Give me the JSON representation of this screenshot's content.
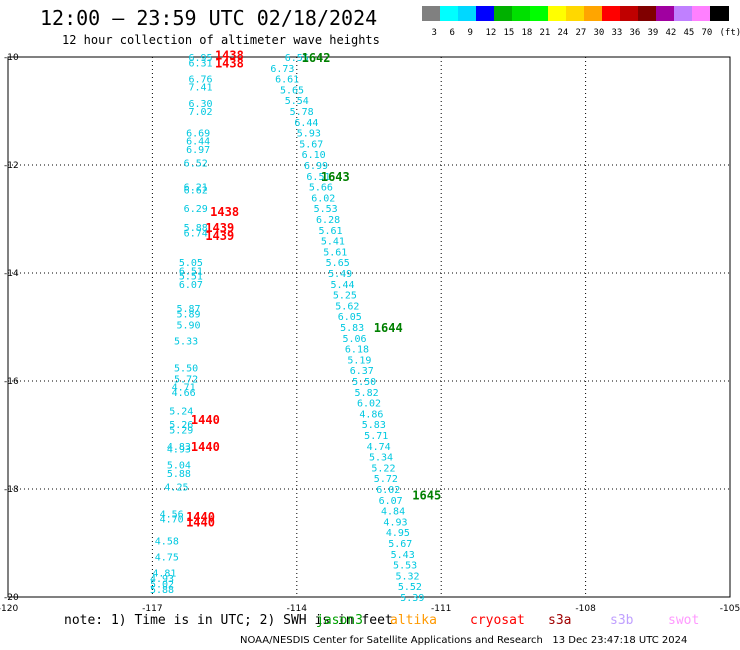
{
  "header": {
    "title": "12:00 – 23:59 UTC 02/18/2024",
    "subtitle": "12 hour collection of altimeter wave heights"
  },
  "legend": {
    "colors": [
      "#808080",
      "#00ffff",
      "#00d8ff",
      "#0000ff",
      "#00b000",
      "#00e000",
      "#00ff00",
      "#ffff00",
      "#ffd800",
      "#ffa500",
      "#ff0000",
      "#c00000",
      "#800000",
      "#a000a0",
      "#c080ff",
      "#ff80ff",
      "#000000"
    ],
    "ticks": [
      "3",
      "6",
      "9",
      "12",
      "15",
      "18",
      "21",
      "24",
      "27",
      "30",
      "33",
      "36",
      "39",
      "42",
      "45",
      "70",
      "(ft)"
    ]
  },
  "axes": {
    "x_ticks": [
      "-120",
      "-117",
      "-114",
      "-111",
      "-108",
      "-105"
    ],
    "y_ticks": [
      "-10",
      "-12",
      "-14",
      "-16",
      "-18",
      "-20"
    ]
  },
  "footer": {
    "note": "note: 1) Time is in UTC; 2) SWH is in feet",
    "satellites": [
      {
        "name": "jason3",
        "color": "#00a000"
      },
      {
        "name": "altika",
        "color": "#ff9900"
      },
      {
        "name": "cryosat",
        "color": "#ff0000"
      },
      {
        "name": "s3a",
        "color": "#a00000"
      },
      {
        "name": "s3b",
        "color": "#c0a0ff"
      },
      {
        "name": "swot",
        "color": "#ff99ff"
      }
    ],
    "credit": "NOAA/NESDIS Center for Satellite Applications and Research   13 Dec 23:47:18 UTC 2024"
  },
  "chart_data": {
    "type": "scatter",
    "x_range": [
      -120,
      -105
    ],
    "y_range": [
      -20,
      -10
    ],
    "value_color": "#00c8e0",
    "passes": [
      {
        "satellite": "jason3",
        "points": [
          {
            "lon": -114.0,
            "lat": -10.0,
            "v": "6.55"
          },
          {
            "lon": -114.3,
            "lat": -10.2,
            "v": "6.73"
          },
          {
            "lon": -114.2,
            "lat": -10.4,
            "v": "6.61"
          },
          {
            "lon": -114.1,
            "lat": -10.6,
            "v": "5.65"
          },
          {
            "lon": -114.0,
            "lat": -10.8,
            "v": "5.54"
          },
          {
            "lon": -113.9,
            "lat": -11.0,
            "v": "5.78"
          },
          {
            "lon": -113.8,
            "lat": -11.2,
            "v": "6.44"
          },
          {
            "lon": -113.75,
            "lat": -11.4,
            "v": "5.93"
          },
          {
            "lon": -113.7,
            "lat": -11.6,
            "v": "5.67"
          },
          {
            "lon": -113.65,
            "lat": -11.8,
            "v": "6.10"
          },
          {
            "lon": -113.6,
            "lat": -12.0,
            "v": "6.99"
          },
          {
            "lon": -113.55,
            "lat": -12.2,
            "v": "6.51"
          },
          {
            "lon": -113.5,
            "lat": -12.4,
            "v": "5.66"
          },
          {
            "lon": -113.45,
            "lat": -12.6,
            "v": "6.02"
          },
          {
            "lon": -113.4,
            "lat": -12.8,
            "v": "5.53"
          },
          {
            "lon": -113.35,
            "lat": -13.0,
            "v": "6.28"
          },
          {
            "lon": -113.3,
            "lat": -13.2,
            "v": "5.61"
          },
          {
            "lon": -113.25,
            "lat": -13.4,
            "v": "5.41"
          },
          {
            "lon": -113.2,
            "lat": -13.6,
            "v": "5.61"
          },
          {
            "lon": -113.15,
            "lat": -13.8,
            "v": "5.65"
          },
          {
            "lon": -113.1,
            "lat": -14.0,
            "v": "5.49"
          },
          {
            "lon": -113.05,
            "lat": -14.2,
            "v": "5.44"
          },
          {
            "lon": -113.0,
            "lat": -14.4,
            "v": "5.25"
          },
          {
            "lon": -112.95,
            "lat": -14.6,
            "v": "5.62"
          },
          {
            "lon": -112.9,
            "lat": -14.8,
            "v": "6.05"
          },
          {
            "lon": -112.85,
            "lat": -15.0,
            "v": "5.83"
          },
          {
            "lon": -112.8,
            "lat": -15.2,
            "v": "5.06"
          },
          {
            "lon": -112.75,
            "lat": -15.4,
            "v": "6.18"
          },
          {
            "lon": -112.7,
            "lat": -15.6,
            "v": "5.19"
          },
          {
            "lon": -112.65,
            "lat": -15.8,
            "v": "6.37"
          },
          {
            "lon": -112.6,
            "lat": -16.0,
            "v": "5.50"
          },
          {
            "lon": -112.55,
            "lat": -16.2,
            "v": "5.82"
          },
          {
            "lon": -112.5,
            "lat": -16.4,
            "v": "6.02"
          },
          {
            "lon": -112.45,
            "lat": -16.6,
            "v": "4.86"
          },
          {
            "lon": -112.4,
            "lat": -16.8,
            "v": "5.83"
          },
          {
            "lon": -112.35,
            "lat": -17.0,
            "v": "5.71"
          },
          {
            "lon": -112.3,
            "lat": -17.2,
            "v": "4.74"
          },
          {
            "lon": -112.25,
            "lat": -17.4,
            "v": "5.34"
          },
          {
            "lon": -112.2,
            "lat": -17.6,
            "v": "5.22"
          },
          {
            "lon": -112.15,
            "lat": -17.8,
            "v": "5.72"
          },
          {
            "lon": -112.1,
            "lat": -18.0,
            "v": "6.02"
          },
          {
            "lon": -112.05,
            "lat": -18.2,
            "v": "6.07"
          },
          {
            "lon": -112.0,
            "lat": -18.4,
            "v": "4.84"
          },
          {
            "lon": -111.95,
            "lat": -18.6,
            "v": "4.93"
          },
          {
            "lon": -111.9,
            "lat": -18.8,
            "v": "4.95"
          },
          {
            "lon": -111.85,
            "lat": -19.0,
            "v": "5.67"
          },
          {
            "lon": -111.8,
            "lat": -19.2,
            "v": "5.43"
          },
          {
            "lon": -111.75,
            "lat": -19.4,
            "v": "5.53"
          },
          {
            "lon": -111.7,
            "lat": -19.6,
            "v": "5.32"
          },
          {
            "lon": -111.65,
            "lat": -19.8,
            "v": "5.52"
          },
          {
            "lon": -111.6,
            "lat": -20.0,
            "v": "5.39"
          }
        ],
        "times": [
          {
            "lon": -113.6,
            "lat": -10.0,
            "t": "1642",
            "color": "#008000"
          },
          {
            "lon": -113.2,
            "lat": -12.2,
            "t": "1643",
            "color": "#008000"
          },
          {
            "lon": -112.1,
            "lat": -15.0,
            "t": "1644",
            "color": "#008000"
          },
          {
            "lon": -111.3,
            "lat": -18.1,
            "t": "1645",
            "color": "#008000"
          }
        ]
      },
      {
        "satellite": "cryosat",
        "points": [
          {
            "lon": -116.0,
            "lat": -10.0,
            "v": "6.95"
          },
          {
            "lon": -116.0,
            "lat": -10.1,
            "v": "6.31"
          },
          {
            "lon": -116.0,
            "lat": -10.4,
            "v": "6.76"
          },
          {
            "lon": -116.0,
            "lat": -10.55,
            "v": "7.41"
          },
          {
            "lon": -116.0,
            "lat": -10.85,
            "v": "6.30"
          },
          {
            "lon": -116.0,
            "lat": -11.0,
            "v": "7.02"
          },
          {
            "lon": -116.05,
            "lat": -11.4,
            "v": "6.69"
          },
          {
            "lon": -116.05,
            "lat": -11.55,
            "v": "6.44"
          },
          {
            "lon": -116.05,
            "lat": -11.7,
            "v": "6.97"
          },
          {
            "lon": -116.1,
            "lat": -11.95,
            "v": "6.52"
          },
          {
            "lon": -116.1,
            "lat": -12.4,
            "v": "6.21"
          },
          {
            "lon": -116.1,
            "lat": -12.45,
            "v": "6.62"
          },
          {
            "lon": -116.1,
            "lat": -12.8,
            "v": "6.29"
          },
          {
            "lon": -116.1,
            "lat": -13.15,
            "v": "5.88"
          },
          {
            "lon": -116.1,
            "lat": -13.25,
            "v": "6.74"
          },
          {
            "lon": -116.2,
            "lat": -13.8,
            "v": "5.05"
          },
          {
            "lon": -116.2,
            "lat": -13.95,
            "v": "6.51"
          },
          {
            "lon": -116.2,
            "lat": -14.05,
            "v": "5.51"
          },
          {
            "lon": -116.2,
            "lat": -14.2,
            "v": "6.07"
          },
          {
            "lon": -116.25,
            "lat": -14.65,
            "v": "5.87"
          },
          {
            "lon": -116.25,
            "lat": -14.75,
            "v": "5.89"
          },
          {
            "lon": -116.25,
            "lat": -14.95,
            "v": "5.90"
          },
          {
            "lon": -116.3,
            "lat": -15.25,
            "v": "5.33"
          },
          {
            "lon": -116.3,
            "lat": -15.75,
            "v": "5.50"
          },
          {
            "lon": -116.3,
            "lat": -15.95,
            "v": "5.72"
          },
          {
            "lon": -116.35,
            "lat": -16.1,
            "v": "4.71"
          },
          {
            "lon": -116.35,
            "lat": -16.2,
            "v": "4.66"
          },
          {
            "lon": -116.4,
            "lat": -16.55,
            "v": "5.24"
          },
          {
            "lon": -116.4,
            "lat": -16.8,
            "v": "5.26"
          },
          {
            "lon": -116.4,
            "lat": -16.9,
            "v": "5.29"
          },
          {
            "lon": -116.45,
            "lat": -17.2,
            "v": "4.83"
          },
          {
            "lon": -116.45,
            "lat": -17.25,
            "v": "4.93"
          },
          {
            "lon": -116.45,
            "lat": -17.55,
            "v": "5.04"
          },
          {
            "lon": -116.45,
            "lat": -17.7,
            "v": "5.88"
          },
          {
            "lon": -116.5,
            "lat": -17.95,
            "v": "4.25"
          },
          {
            "lon": -116.6,
            "lat": -18.45,
            "v": "4.56"
          },
          {
            "lon": -116.6,
            "lat": -18.55,
            "v": "4.70"
          },
          {
            "lon": -116.7,
            "lat": -18.95,
            "v": "4.58"
          },
          {
            "lon": -116.7,
            "lat": -19.25,
            "v": "4.75"
          },
          {
            "lon": -116.75,
            "lat": -19.55,
            "v": "4.81"
          },
          {
            "lon": -116.8,
            "lat": -19.65,
            "v": "4.93"
          },
          {
            "lon": -116.8,
            "lat": -19.75,
            "v": "5.02"
          },
          {
            "lon": -116.8,
            "lat": -19.85,
            "v": "5.88"
          }
        ],
        "times": [
          {
            "lon": -115.4,
            "lat": -9.95,
            "t": "1438",
            "color": "#ff0000"
          },
          {
            "lon": -115.4,
            "lat": -10.1,
            "t": "1438",
            "color": "#ff0000"
          },
          {
            "lon": -115.5,
            "lat": -12.85,
            "t": "1438",
            "color": "#ff0000"
          },
          {
            "lon": -115.6,
            "lat": -13.15,
            "t": "1439",
            "color": "#ff0000"
          },
          {
            "lon": -115.6,
            "lat": -13.3,
            "t": "1439",
            "color": "#ff0000"
          },
          {
            "lon": -115.9,
            "lat": -16.7,
            "t": "1440",
            "color": "#ff0000"
          },
          {
            "lon": -115.9,
            "lat": -17.2,
            "t": "1440",
            "color": "#ff0000"
          },
          {
            "lon": -116.0,
            "lat": -18.5,
            "t": "1440",
            "color": "#ff0000"
          },
          {
            "lon": -116.0,
            "lat": -18.6,
            "t": "1440",
            "color": "#ff0000"
          }
        ]
      }
    ]
  }
}
